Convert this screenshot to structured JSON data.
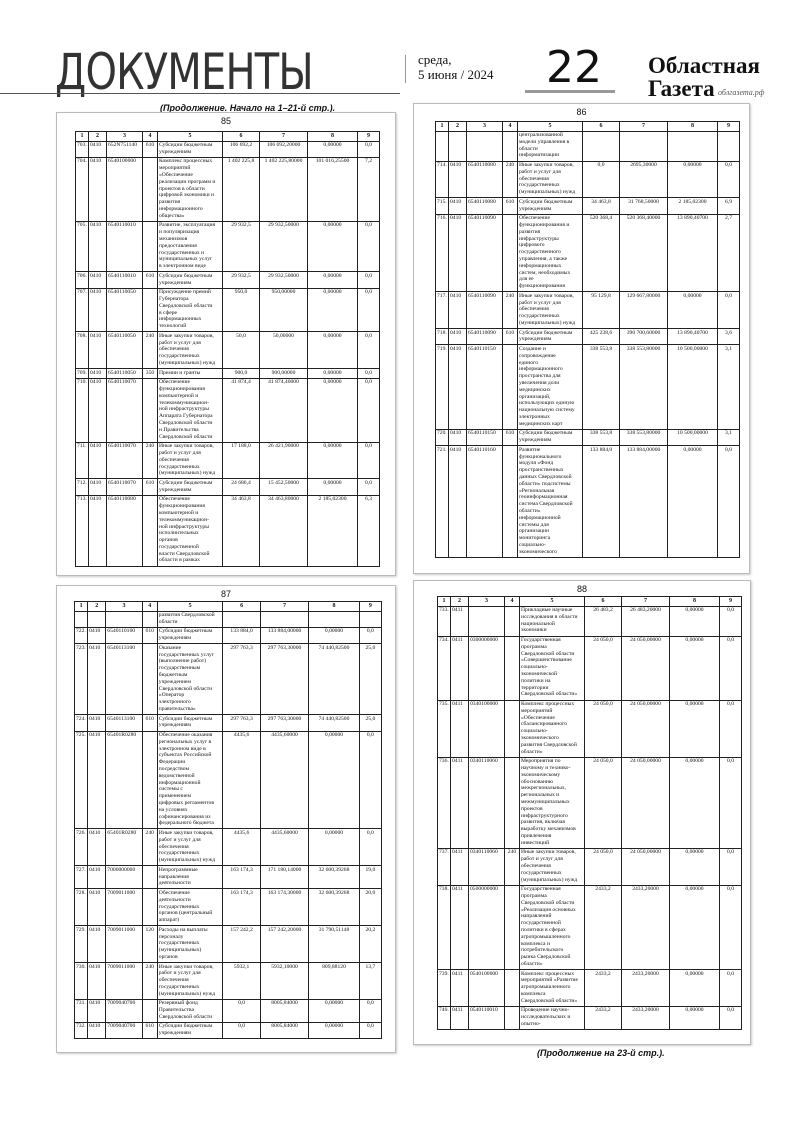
{
  "header": {
    "section": "ДОКУМЕНТЫ",
    "weekday": "среда,",
    "date": "5 июня / 2024",
    "page": "22",
    "brand_line1": "Областная",
    "brand_line2": "Газета",
    "site": "облгазета.рф"
  },
  "notes": {
    "start": "(Продолжение. Начало на 1–21-й стр.).",
    "end": "(Продолжение на 23-й стр.)."
  },
  "columns": [
    "1",
    "2",
    "3",
    "4",
    "5",
    "6",
    "7",
    "8",
    "9"
  ],
  "tables": [
    {
      "page": "85",
      "rows": [
        [
          "703.",
          "0410",
          "652N751140",
          "610",
          "Субсидии бюджетным\nучреждениям",
          "106 692,2",
          "106 692,20000",
          "0,00000",
          "0,0"
        ],
        [
          "704.",
          "0410",
          "6540100000",
          "",
          "Комплекс процессных\nмероприятий\n«Обеспечение\nреализации программ и\nпроектов в области\nцифровой экономики и\nразвития\nинформационного\nобщества»",
          "1 402 225,8",
          "1 402 225,80000",
          "101 016,25500",
          "7,2"
        ],
        [
          "705.",
          "0410",
          "6540110010",
          "",
          "Развитие, эксплуатация\nи популяризация\nмеханизмов\nпредоставления\nгосударственных и\nмуниципальных услуг\nв электронном виде",
          "29 932,5",
          "29 932,50000",
          "0,00000",
          "0,0"
        ],
        [
          "706.",
          "0410",
          "6540110010",
          "610",
          "Субсидии бюджетным\nучреждениям",
          "29 932,5",
          "29 932,50000",
          "0,00000",
          "0,0"
        ],
        [
          "707.",
          "0410",
          "6540110050",
          "",
          "Присуждение премий\nГубернатора\nСвердловской области\nв сфере\nинформационных\nтехнологий",
          "950,0",
          "950,00000",
          "0,00000",
          "0,0"
        ],
        [
          "708.",
          "0410",
          "6540110050",
          "240",
          "Иные закупки товаров,\nработ и услуг для\nобеспечения\nгосударственных\n(муниципальных) нужд",
          "50,0",
          "50,00000",
          "0,00000",
          "0,0"
        ],
        [
          "709.",
          "0410",
          "6540110050",
          "350",
          "Премии и гранты",
          "900,0",
          "900,00000",
          "0,00000",
          "0,0"
        ],
        [
          "710.",
          "0410",
          "6540110070",
          "",
          "Обеспечение\nфункционирования\nкомпьютерной и\nтелекоммуникацион-\nной инфраструктуры\nАппарата Губернатора\nСвердловской области\nи Правительства\nСвердловской области",
          "41 874,4",
          "41 874,40000",
          "0,00000",
          "0,0"
        ],
        [
          "711.",
          "0410",
          "6540110070",
          "240",
          "Иные закупки товаров,\nработ и услуг для\nобеспечения\nгосударственных\n(муниципальных) нужд",
          "17 188,0",
          "26 421,90000",
          "0,00000",
          "0,0"
        ],
        [
          "712.",
          "0410",
          "6540110070",
          "610",
          "Субсидии бюджетным\nучреждениям",
          "24 686,4",
          "15 452,50000",
          "0,00000",
          "0,0"
        ],
        [
          "713.",
          "0410",
          "6540110080",
          "",
          "Обеспечение\nфункционирования\nкомпьютерной и\nтелекоммуникацион-\nной инфраструктуры\nисполнительных\nорганов\nгосударственной\nвласти Свердловской\nобласти в рамках",
          "34 463,8",
          "34 463,80000",
          "2 185,02300",
          "6,3"
        ]
      ]
    },
    {
      "page": "86",
      "rows": [
        [
          "",
          "",
          "",
          "",
          "централизованной\nмодели управления в\nобласти\nинформатизации",
          "",
          "",
          "",
          ""
        ],
        [
          "714.",
          "0410",
          "6540110080",
          "240",
          "Иные закупки товаров,\nработ и услуг для\nобеспечения\nгосударственных\n(муниципальных) нужд",
          "0,0",
          "2695,30000",
          "0,00000",
          "0,0"
        ],
        [
          "715.",
          "0410",
          "6540110080",
          "610",
          "Субсидии бюджетным\nучреждениям",
          "34 463,8",
          "31 768,50000",
          "2 185,02300",
          "6,9"
        ],
        [
          "716.",
          "0410",
          "6540110090",
          "",
          "Обеспечение\nфункционирования и\nразвития\nинфраструктуры\nцифрового\nгосударственного\nуправления, а также\nинформационных\nсистем, необходимых\nдля ее\nфункционирования",
          "520 368,4",
          "520 368,40000",
          "13 890,40700",
          "2,7"
        ],
        [
          "717.",
          "0410",
          "6540110090",
          "240",
          "Иные закупки товаров,\nработ и услуг для\nобеспечения\nгосударственных\n(муниципальных) нужд",
          "95 129,8",
          "129 667,80000",
          "0,00000",
          "0,0"
        ],
        [
          "718.",
          "0410",
          "6540110090",
          "610",
          "Субсидии бюджетным\nучреждениям",
          "425 238,6",
          "390 700,60000",
          "13 890,40700",
          "3,6"
        ],
        [
          "719.",
          "0410",
          "6540110150",
          "",
          "Создание и\nсопровождение\nединого\nинформационного\nпространства для\nувеличения доли\nмедицинских\nорганизаций,\nиспользующих единую\nнациональную систему\nэлектронных\nмедицинских карт",
          "338 553,8",
          "338 553,80000",
          "10 500,00000",
          "3,1"
        ],
        [
          "720.",
          "0410",
          "6540110150",
          "610",
          "Субсидии бюджетным\nучреждениям",
          "338 553,8",
          "338 553,80000",
          "10 500,00000",
          "3,1"
        ],
        [
          "721.",
          "0410",
          "6540110160",
          "",
          "Развитие\nфункционального\nмодуля «Фонд\nпространственных\nданных Свердловской\nобласти» подсистемы\n«Региональная\nгеоинформационная\nсистема Свердловской\nобласти»\nинформационной\nсистемы для\nорганизации\nмониторинга\nсоциально-\nэкономического",
          "133 884,0",
          "133 884,00000",
          "0,00000",
          "0,0"
        ]
      ]
    },
    {
      "page": "87",
      "rows": [
        [
          "",
          "",
          "",
          "",
          "развития Свердловской\nобласти",
          "",
          "",
          "",
          ""
        ],
        [
          "722.",
          "0410",
          "6540110160",
          "610",
          "Субсидии бюджетным\nучреждениям",
          "133 884,0",
          "133 884,00000",
          "0,00000",
          "0,0"
        ],
        [
          "723.",
          "0410",
          "6540113100",
          "",
          "Оказание\nгосударственных услуг\n(выполнение работ)\nгосударственным\nбюджетным\nучреждением\nСвердловской области\n«Оператор\nэлектронного\nправительства»",
          "297 763,3",
          "297 763,30000",
          "74 440,82500",
          "25,0"
        ],
        [
          "724.",
          "0410",
          "6540113100",
          "610",
          "Субсидии бюджетным\nучреждениям",
          "297 763,3",
          "297 763,30000",
          "74 440,82500",
          "25,0"
        ],
        [
          "725.",
          "0410",
          "65401R0280",
          "",
          "Обеспечение оказания\nрегиональных услуг в\nэлектронном виде в\nсубъектах Российской\nФедерации\nпосредством\nведомственной\nинформационной\nсистемы с\nприменением\nцифровых регламентов\nна условиях\nсофинансирования из\nфедерального бюджета",
          "4435,6",
          "4435,60000",
          "0,00000",
          "0,0"
        ],
        [
          "726.",
          "0410",
          "65401R0280",
          "240",
          "Иные закупки товаров,\nработ и услуг для\nобеспечения\nгосударственных\n(муниципальных) нужд",
          "4435,6",
          "4435,60000",
          "0,00000",
          "0,0"
        ],
        [
          "727.",
          "0410",
          "7000000000",
          "",
          "Непрограммные\nнаправления\nдеятельности",
          "163 174,3",
          "171 180,14000",
          "32 600,39268",
          "19,0"
        ],
        [
          "728.",
          "0410",
          "7009011000",
          "",
          "Обеспечение\nдеятельности\nгосударственных\nорганов (центральный\nаппарат)",
          "163 174,3",
          "163 174,30000",
          "32 600,39268",
          "20,0"
        ],
        [
          "729.",
          "0410",
          "7009011000",
          "120",
          "Расходы на выплаты\nперсоналу\nгосударственных\n(муниципальных)\nорганов",
          "157 242,2",
          "157 242,20000",
          "31 790,51148",
          "20,2"
        ],
        [
          "730.",
          "0410",
          "7009011000",
          "240",
          "Иные закупки товаров,\nработ и услуг для\nобеспечения\nгосударственных\n(муниципальных) нужд",
          "5932,1",
          "5932,10000",
          "809,88120",
          "13,7"
        ],
        [
          "731.",
          "0410",
          "7009040700",
          "",
          "Резервный фонд\nПравительства\nСвердловской области",
          "0,0",
          "8005,84000",
          "0,00000",
          "0,0"
        ],
        [
          "732.",
          "0410",
          "7009040700",
          "610",
          "Субсидии бюджетным\nучреждениям",
          "0,0",
          "8005,84000",
          "0,00000",
          "0,0"
        ]
      ]
    },
    {
      "page": "88",
      "rows": [
        [
          "733.",
          "0411",
          "",
          "",
          "Прикладные научные\nисследования в области\nнациональной\nэкономики",
          "26 483,2",
          "26 483,20000",
          "0,00000",
          "0,0"
        ],
        [
          "734.",
          "0411",
          "0300000000",
          "",
          "Государственная\nпрограмма\nСвердловской области\n«Совершенствование\nсоциально-\nэкономической\nполитики на\nтерритории\nСвердловской области»",
          "24 050,0",
          "24 050,00000",
          "0,00000",
          "0,0"
        ],
        [
          "735.",
          "0411",
          "0340100000",
          "",
          "Комплекс процессных\nмероприятий\n«Обеспечение\nсбалансированного\nсоциально-\nэкономического\nразвития Свердловской\nобласти»",
          "24 050,0",
          "24 050,00000",
          "0,00000",
          "0,0"
        ],
        [
          "736.",
          "0411",
          "0340110060",
          "",
          "Мероприятия по\nнаучному и технико-\nэкономическому\nобоснованию\nмежрегиональных,\nрегиональных и\nмежмуниципальных\nпроектов\nинфраструктурного\nразвития, включая\nвыработку механизмов\nпривлечения\nинвестиций",
          "24 050,0",
          "24 050,00000",
          "0,00000",
          "0,0"
        ],
        [
          "737.",
          "0411",
          "0340110060",
          "240",
          "Иные закупки товаров,\nработ и услуг для\nобеспечения\nгосударственных\n(муниципальных) нужд",
          "24 050,0",
          "24 050,00000",
          "0,00000",
          "0,0"
        ],
        [
          "738.",
          "0411",
          "0500000000",
          "",
          "Государственная\nпрограмма\nСвердловской области\n«Реализация основных\nнаправлений\nгосударственной\nполитики в сферах\nагропромышленного\nкомплекса и\nпотребительского\nрынка Свердловской\nобласти»",
          "2433,2",
          "2433,20000",
          "0,00000",
          "0,0"
        ],
        [
          "739.",
          "0411",
          "0540100000",
          "",
          "Комплекс процессных\nмероприятий «Развитие\nагропромышленного\nкомплекса\nСвердловской области»",
          "2433,2",
          "2433,20000",
          "0,00000",
          "0,0"
        ],
        [
          "740.",
          "0411",
          "0540110010",
          "",
          "Проведение научно-\nисследовательских и\nопытно-",
          "2433,2",
          "2433,20000",
          "0,00000",
          "0,0"
        ]
      ]
    }
  ]
}
